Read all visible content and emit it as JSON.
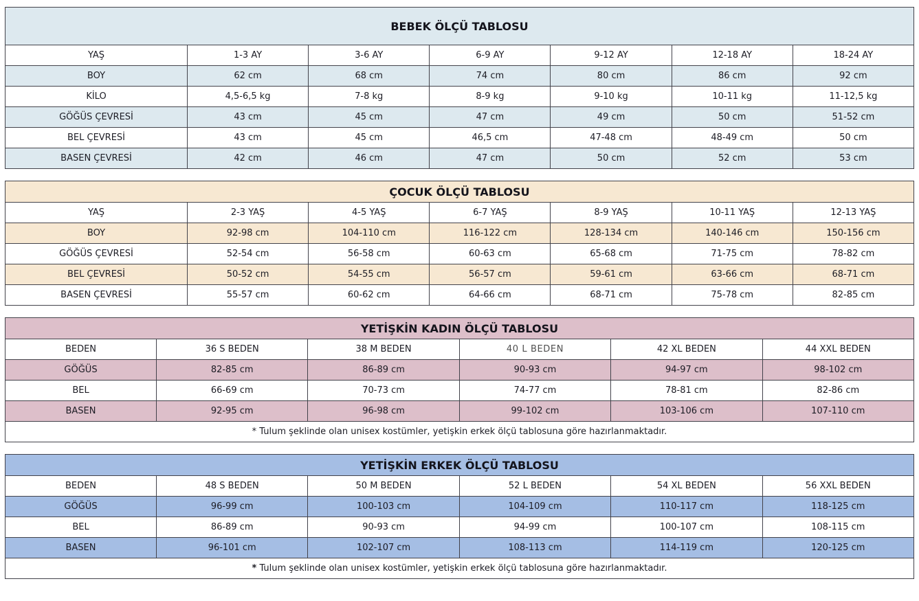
{
  "colors": {
    "bebek_theme": "#dde9ef",
    "cocuk_theme": "#f7e8d2",
    "kadin_theme": "#ddbfca",
    "erkek_theme": "#a5bee4",
    "border": "#42424a",
    "text": "#1c1c24"
  },
  "tables": [
    {
      "title": "BEBEK ÖLÇÜ TABLOSU",
      "rows": [
        {
          "label": "YAŞ",
          "values": [
            "1-3 AY",
            "3-6 AY",
            "6-9 AY",
            "9-12 AY",
            "12-18 AY",
            "18-24 AY"
          ]
        },
        {
          "label": "BOY",
          "values": [
            "62 cm",
            "68 cm",
            "74 cm",
            "80 cm",
            "86 cm",
            "92 cm"
          ]
        },
        {
          "label": "KİLO",
          "values": [
            "4,5-6,5 kg",
            "7-8 kg",
            "8-9 kg",
            "9-10 kg",
            "10-11 kg",
            "11-12,5 kg"
          ]
        },
        {
          "label": "GÖĞÜS ÇEVRESİ",
          "values": [
            "43 cm",
            "45 cm",
            "47 cm",
            "49 cm",
            "50 cm",
            "51-52 cm"
          ]
        },
        {
          "label": "BEL ÇEVRESİ",
          "values": [
            "43 cm",
            "45 cm",
            "46,5 cm",
            "47-48 cm",
            "48-49 cm",
            "50 cm"
          ]
        },
        {
          "label": "BASEN ÇEVRESİ",
          "values": [
            "42 cm",
            "46 cm",
            "47 cm",
            "50 cm",
            "52 cm",
            "53 cm"
          ]
        }
      ]
    },
    {
      "title": "ÇOCUK ÖLÇÜ TABLOSU",
      "rows": [
        {
          "label": "YAŞ",
          "values": [
            "2-3 YAŞ",
            "4-5 YAŞ",
            "6-7 YAŞ",
            "8-9 YAŞ",
            "10-11 YAŞ",
            "12-13 YAŞ"
          ]
        },
        {
          "label": "BOY",
          "values": [
            "92-98 cm",
            "104-110 cm",
            "116-122 cm",
            "128-134 cm",
            "140-146 cm",
            "150-156 cm"
          ]
        },
        {
          "label": "GÖĞÜS ÇEVRESİ",
          "values": [
            "52-54 cm",
            "56-58 cm",
            "60-63 cm",
            "65-68 cm",
            "71-75 cm",
            "78-82 cm"
          ]
        },
        {
          "label": "BEL ÇEVRESİ",
          "values": [
            "50-52 cm",
            "54-55 cm",
            "56-57 cm",
            "59-61 cm",
            "63-66 cm",
            "68-71 cm"
          ]
        },
        {
          "label": "BASEN ÇEVRESİ",
          "values": [
            "55-57 cm",
            "60-62 cm",
            "64-66 cm",
            "68-71 cm",
            "75-78 cm",
            "82-85 cm"
          ]
        }
      ]
    },
    {
      "title": "YETİŞKİN KADIN ÖLÇÜ TABLOSU",
      "rows": [
        {
          "label": "BEDEN",
          "values": [
            "36 S BEDEN",
            "38 M BEDEN",
            "40 L BEDEN",
            "42 XL BEDEN",
            "44 XXL BEDEN"
          ]
        },
        {
          "label": "GÖĞÜS",
          "values": [
            "82-85 cm",
            "86-89 cm",
            "90-93 cm",
            "94-97 cm",
            "98-102 cm"
          ]
        },
        {
          "label": "BEL",
          "values": [
            "66-69 cm",
            "70-73 cm",
            "74-77 cm",
            "78-81 cm",
            "82-86 cm"
          ]
        },
        {
          "label": "BASEN",
          "values": [
            "92-95 cm",
            "96-98 cm",
            "99-102 cm",
            "103-106 cm",
            "107-110 cm"
          ]
        }
      ],
      "footnote": {
        "marker": "*",
        "text": " Tulum şeklinde olan unisex kostümler, yetişkin erkek ölçü tablosuna göre hazırlanmaktadır."
      }
    },
    {
      "title": "YETİŞKİN ERKEK ÖLÇÜ TABLOSU",
      "rows": [
        {
          "label": "BEDEN",
          "values": [
            "48 S BEDEN",
            "50 M BEDEN",
            "52 L BEDEN",
            "54 XL BEDEN",
            "56 XXL BEDEN"
          ]
        },
        {
          "label": "GÖĞÜS",
          "values": [
            "96-99 cm",
            "100-103 cm",
            "104-109 cm",
            "110-117 cm",
            "118-125 cm"
          ]
        },
        {
          "label": "BEL",
          "values": [
            "86-89 cm",
            "90-93 cm",
            "94-99 cm",
            "100-107 cm",
            "108-115 cm"
          ]
        },
        {
          "label": "BASEN",
          "values": [
            "96-101 cm",
            "102-107 cm",
            "108-113 cm",
            "114-119 cm",
            "120-125 cm"
          ]
        }
      ],
      "footnote": {
        "marker": "*",
        "text": " Tulum şeklinde olan unisex kostümler, yetişkin erkek ölçü  tablosuna göre hazırlanmaktadır."
      }
    }
  ]
}
